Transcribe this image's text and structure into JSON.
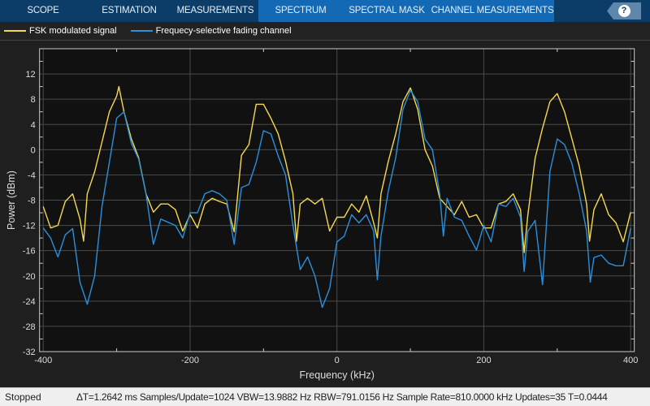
{
  "toolstrip": {
    "tabs": [
      "SCOPE",
      "ESTIMATION",
      "MEASUREMENTS",
      "SPECTRUM",
      "SPECTRAL MASK",
      "CHANNEL MEASUREMENTS"
    ],
    "active_group": [
      "SPECTRUM",
      "SPECTRAL MASK",
      "CHANNEL MEASUREMENTS"
    ],
    "help_label": "?"
  },
  "status": {
    "state": "Stopped",
    "info": "ΔT=1.2642 ms  Samples/Update=1024  VBW=13.9882 Hz  RBW=791.0156 Hz  Sample Rate=810.0000 kHz  Updates=35  T=0.0444"
  },
  "chart_data": {
    "type": "line",
    "xlabel": "Frequency (kHz)",
    "ylabel": "Power (dBm)",
    "xlim": [
      -405,
      405
    ],
    "ylim": [
      -32,
      16
    ],
    "xticks": [
      -400,
      -200,
      0,
      200,
      400
    ],
    "yticks": [
      12,
      8,
      4,
      0,
      -4,
      -8,
      -12,
      -16,
      -20,
      -24,
      -28,
      -32
    ],
    "grid": true,
    "legend": "top-left",
    "background": "#111111",
    "series": [
      {
        "name": "FSK modulated signal",
        "color": "#f5d94e",
        "points": [
          [
            -400,
            -9
          ],
          [
            -390,
            -12.4
          ],
          [
            -380,
            -12
          ],
          [
            -370,
            -8.2
          ],
          [
            -360,
            -7
          ],
          [
            -350,
            -11
          ],
          [
            -345,
            -14.5
          ],
          [
            -340,
            -7
          ],
          [
            -330,
            -3.5
          ],
          [
            -320,
            1.2
          ],
          [
            -310,
            6
          ],
          [
            -300,
            8.5
          ],
          [
            -297,
            10
          ],
          [
            -290,
            6
          ],
          [
            -280,
            1.7
          ],
          [
            -270,
            -1.3
          ],
          [
            -260,
            -7
          ],
          [
            -250,
            -9.9
          ],
          [
            -240,
            -8.6
          ],
          [
            -230,
            -8.6
          ],
          [
            -220,
            -9.5
          ],
          [
            -210,
            -12.9
          ],
          [
            -200,
            -10.3
          ],
          [
            -190,
            -12.4
          ],
          [
            -180,
            -8.6
          ],
          [
            -170,
            -7.7
          ],
          [
            -160,
            -8.2
          ],
          [
            -150,
            -8.6
          ],
          [
            -140,
            -13
          ],
          [
            -130,
            -0.9
          ],
          [
            -120,
            0.8
          ],
          [
            -110,
            7.2
          ],
          [
            -100,
            7.2
          ],
          [
            -90,
            5
          ],
          [
            -80,
            2.5
          ],
          [
            -70,
            -1.8
          ],
          [
            -60,
            -7
          ],
          [
            -55,
            -14.5
          ],
          [
            -50,
            -8.6
          ],
          [
            -40,
            -7.7
          ],
          [
            -30,
            -8.6
          ],
          [
            -20,
            -7.7
          ],
          [
            -10,
            -12.9
          ],
          [
            0,
            -10.7
          ],
          [
            10,
            -10.7
          ],
          [
            20,
            -8.6
          ],
          [
            30,
            -9.9
          ],
          [
            40,
            -7.3
          ],
          [
            50,
            -11.6
          ],
          [
            55,
            -14
          ],
          [
            60,
            -7
          ],
          [
            70,
            -1.8
          ],
          [
            80,
            2.5
          ],
          [
            90,
            7.6
          ],
          [
            100,
            9.8
          ],
          [
            110,
            6.4
          ],
          [
            120,
            0
          ],
          [
            130,
            -2.6
          ],
          [
            140,
            -7.7
          ],
          [
            150,
            -9
          ],
          [
            160,
            -10.3
          ],
          [
            170,
            -8.2
          ],
          [
            180,
            -10.7
          ],
          [
            190,
            -10.3
          ],
          [
            200,
            -12.4
          ],
          [
            210,
            -12.4
          ],
          [
            220,
            -8.6
          ],
          [
            230,
            -8.2
          ],
          [
            240,
            -7
          ],
          [
            250,
            -9.5
          ],
          [
            255,
            -16.3
          ],
          [
            260,
            -10.3
          ],
          [
            270,
            -1.3
          ],
          [
            280,
            3.4
          ],
          [
            290,
            7.6
          ],
          [
            300,
            8.9
          ],
          [
            310,
            6
          ],
          [
            320,
            1.7
          ],
          [
            330,
            -2.6
          ],
          [
            340,
            -8.6
          ],
          [
            344,
            -14.5
          ],
          [
            350,
            -9.5
          ],
          [
            360,
            -7
          ],
          [
            370,
            -10.3
          ],
          [
            380,
            -11.6
          ],
          [
            390,
            -14.6
          ],
          [
            400,
            -9.9
          ]
        ]
      },
      {
        "name": "Frequecy-selective fading channel",
        "color": "#2b8fdc",
        "points": [
          [
            -400,
            -12.4
          ],
          [
            -390,
            -14
          ],
          [
            -380,
            -17
          ],
          [
            -370,
            -13.5
          ],
          [
            -360,
            -12.5
          ],
          [
            -350,
            -21
          ],
          [
            -340,
            -24.5
          ],
          [
            -330,
            -20
          ],
          [
            -320,
            -9
          ],
          [
            -310,
            -2
          ],
          [
            -300,
            5
          ],
          [
            -290,
            6
          ],
          [
            -280,
            1
          ],
          [
            -270,
            -1.5
          ],
          [
            -260,
            -7
          ],
          [
            -250,
            -15
          ],
          [
            -240,
            -11
          ],
          [
            -230,
            -11.5
          ],
          [
            -220,
            -12
          ],
          [
            -210,
            -14
          ],
          [
            -200,
            -10
          ],
          [
            -190,
            -10
          ],
          [
            -180,
            -7
          ],
          [
            -170,
            -6.5
          ],
          [
            -160,
            -7
          ],
          [
            -150,
            -8
          ],
          [
            -140,
            -15
          ],
          [
            -130,
            -6
          ],
          [
            -120,
            -5.5
          ],
          [
            -110,
            -2
          ],
          [
            -100,
            3
          ],
          [
            -90,
            2.5
          ],
          [
            -80,
            -1
          ],
          [
            -70,
            -4
          ],
          [
            -60,
            -12
          ],
          [
            -50,
            -19
          ],
          [
            -40,
            -17
          ],
          [
            -30,
            -20
          ],
          [
            -20,
            -25
          ],
          [
            -10,
            -22
          ],
          [
            0,
            -14.6
          ],
          [
            10,
            -13.7
          ],
          [
            20,
            -10.3
          ],
          [
            30,
            -11.6
          ],
          [
            40,
            -10.3
          ],
          [
            50,
            -12.9
          ],
          [
            55,
            -20.6
          ],
          [
            60,
            -13.7
          ],
          [
            70,
            -6.5
          ],
          [
            80,
            -1.3
          ],
          [
            90,
            6.4
          ],
          [
            100,
            9.4
          ],
          [
            110,
            7.6
          ],
          [
            120,
            1.7
          ],
          [
            130,
            0
          ],
          [
            140,
            -7
          ],
          [
            145,
            -13.7
          ],
          [
            150,
            -7.7
          ],
          [
            160,
            -10.7
          ],
          [
            170,
            -11.2
          ],
          [
            180,
            -13.7
          ],
          [
            190,
            -15.9
          ],
          [
            200,
            -12
          ],
          [
            210,
            -14.6
          ],
          [
            220,
            -8.6
          ],
          [
            230,
            -9
          ],
          [
            240,
            -7.7
          ],
          [
            250,
            -10.7
          ],
          [
            255,
            -19.3
          ],
          [
            260,
            -12.9
          ],
          [
            270,
            -11.2
          ],
          [
            280,
            -21.4
          ],
          [
            290,
            -3.5
          ],
          [
            300,
            1.7
          ],
          [
            310,
            0.8
          ],
          [
            320,
            -2.2
          ],
          [
            330,
            -7
          ],
          [
            340,
            -12.9
          ],
          [
            345,
            -21
          ],
          [
            350,
            -17.1
          ],
          [
            360,
            -16.7
          ],
          [
            370,
            -18
          ],
          [
            380,
            -18.4
          ],
          [
            390,
            -18.4
          ],
          [
            400,
            -12.4
          ]
        ]
      }
    ]
  }
}
